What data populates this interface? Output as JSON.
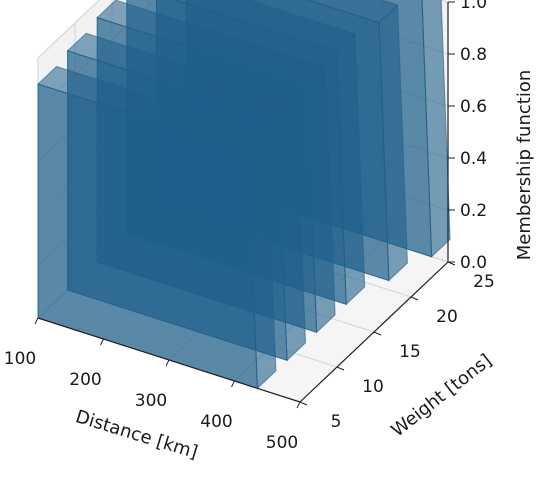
{
  "chart_data": {
    "type": "surface3d",
    "title": "",
    "xlabel": "Distance [km]",
    "ylabel": "Weight [tons]",
    "zlabel": "Membership function",
    "x_ticks": [
      "100",
      "200",
      "300",
      "400",
      "500"
    ],
    "y_ticks": [
      "5",
      "10",
      "15",
      "20",
      "25"
    ],
    "z_ticks": [
      "0.0",
      "0.2",
      "0.4",
      "0.6",
      "0.8",
      "1.0"
    ],
    "xlim": [
      100,
      500
    ],
    "ylim": [
      5,
      25
    ],
    "zlim": [
      0,
      1
    ],
    "grid": true,
    "surface_color": "#1f5f8b",
    "series": [
      {
        "x_range": [
          100,
          420
        ],
        "y": 5,
        "z": 0.9
      },
      {
        "x_range": [
          100,
          420
        ],
        "y": 9,
        "z": 0.92
      },
      {
        "x_range": [
          100,
          420
        ],
        "y": 13,
        "z": 0.94
      },
      {
        "x_range": [
          100,
          420
        ],
        "y": 17,
        "z": 0.96
      },
      {
        "x_range": [
          100,
          440
        ],
        "y": 21,
        "z": 0.98
      },
      {
        "x_range": [
          100,
          460
        ],
        "y": 25,
        "z": 1.0
      }
    ]
  }
}
